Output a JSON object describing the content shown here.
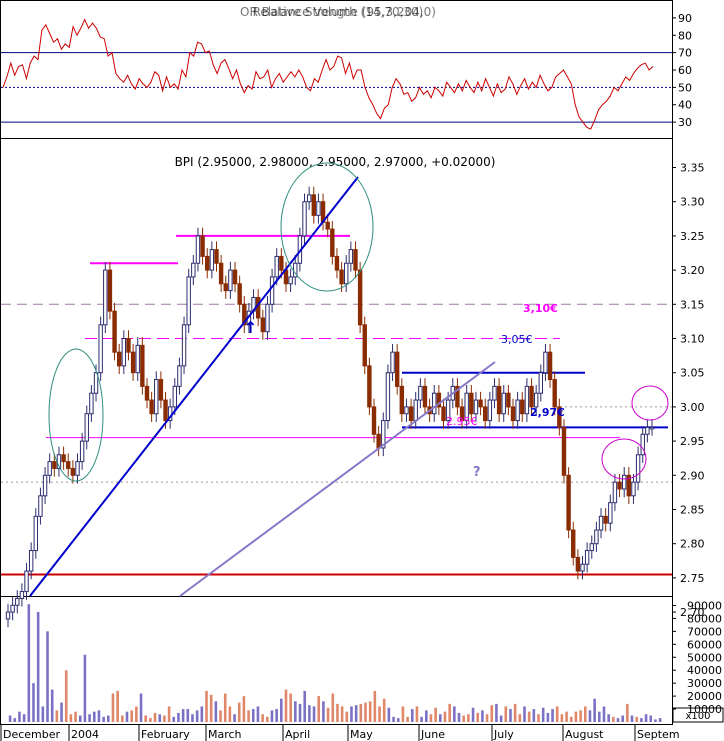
{
  "chart_data": [
    {
      "type": "line",
      "title": "Relative Strength (14,70,30)",
      "overlay_title": "OR Balance Volume (95,3,204,0)",
      "ylim": [
        22,
        98
      ],
      "y_ticks": [
        30,
        40,
        50,
        60,
        70,
        80,
        90
      ],
      "levels": {
        "upper": 70,
        "middle": 50,
        "lower": 30
      },
      "series": [
        {
          "values": [
            50,
            56,
            64,
            57,
            62,
            63,
            55,
            64,
            68,
            66,
            83,
            86,
            81,
            76,
            78,
            72,
            75,
            73,
            85,
            80,
            84,
            89,
            84,
            87,
            84,
            79,
            78,
            68,
            70,
            58,
            55,
            53,
            57,
            52,
            49,
            55,
            52,
            50,
            53,
            59,
            57,
            48,
            56,
            50,
            52,
            49,
            60,
            56,
            70,
            68,
            76,
            75,
            70,
            71,
            63,
            58,
            64,
            66,
            61,
            55,
            60,
            52,
            47,
            51,
            49,
            59,
            55,
            56,
            60,
            50,
            55,
            58,
            53,
            56,
            59,
            56,
            60,
            56,
            50,
            48,
            55,
            53,
            60,
            66,
            60,
            62,
            68,
            67,
            58,
            64,
            55,
            60,
            60,
            50,
            44,
            40,
            35,
            32,
            38,
            40,
            50,
            55,
            52,
            46,
            47,
            42,
            44,
            50,
            46,
            48,
            44,
            50,
            48,
            45,
            53,
            50,
            47,
            52,
            48,
            54,
            50,
            47,
            53,
            48,
            55,
            50,
            45,
            52,
            47,
            49,
            56,
            52,
            46,
            51,
            55,
            49,
            53,
            50,
            57,
            52,
            48,
            50,
            56,
            58,
            60,
            56,
            52,
            40,
            33,
            30,
            27,
            26,
            31,
            37,
            40,
            42,
            45,
            50,
            48,
            52,
            56,
            54,
            58,
            61,
            63,
            64,
            60,
            62
          ]
        }
      ],
      "colors": {
        "line": "#cc0000",
        "levels": "#000080"
      }
    },
    {
      "type": "candlestick",
      "title": "BPI (2.95000, 2.98000, 2.95000, 2.97000, +0.02000)",
      "ylim": [
        2.685,
        3.4
      ],
      "y_ticks": [
        "2.70",
        "2.75",
        "2.80",
        "2.85",
        "2.90",
        "2.95",
        "3.00",
        "3.05",
        "3.10",
        "3.15",
        "3.20",
        "3.25",
        "3.30",
        "3.35"
      ],
      "x_labels": [
        "December",
        "2004",
        "February",
        "March",
        "April",
        "May",
        "June",
        "July",
        "August",
        "Septem"
      ],
      "close": [
        2.7,
        2.71,
        2.72,
        2.73,
        2.76,
        2.79,
        2.84,
        2.87,
        2.9,
        2.92,
        2.91,
        2.93,
        2.92,
        2.91,
        2.9,
        2.92,
        2.95,
        2.99,
        3.02,
        3.05,
        3.12,
        3.2,
        3.14,
        3.08,
        3.06,
        3.1,
        3.08,
        3.05,
        3.09,
        3.03,
        3.01,
        2.99,
        3.04,
        3.01,
        2.98,
        3.0,
        3.03,
        3.06,
        3.12,
        3.19,
        3.21,
        3.25,
        3.22,
        3.2,
        3.23,
        3.21,
        3.18,
        3.17,
        3.2,
        3.18,
        3.15,
        3.12,
        3.14,
        3.16,
        3.13,
        3.11,
        3.15,
        3.19,
        3.22,
        3.2,
        3.18,
        3.19,
        3.21,
        3.25,
        3.3,
        3.31,
        3.28,
        3.3,
        3.27,
        3.26,
        3.22,
        3.2,
        3.18,
        3.21,
        3.23,
        3.2,
        3.12,
        3.06,
        3.0,
        2.96,
        2.94,
        2.98,
        3.05,
        3.08,
        3.03,
        2.99,
        3.0,
        2.98,
        3.01,
        3.03,
        3.0,
        2.99,
        3.02,
        3.0,
        2.98,
        3.01,
        3.03,
        3.0,
        2.98,
        3.02,
        2.99,
        3.01,
        3.0,
        2.98,
        3.01,
        3.03,
        2.99,
        3.02,
        3.0,
        2.98,
        3.01,
        2.99,
        3.03,
        3.0,
        3.02,
        3.05,
        3.08,
        3.04,
        3.0,
        2.97,
        2.9,
        2.82,
        2.78,
        2.76,
        2.77,
        2.79,
        2.8,
        2.82,
        2.84,
        2.83,
        2.86,
        2.89,
        2.88,
        2.9,
        2.87,
        2.89,
        2.93,
        2.96,
        2.97,
        2.97
      ],
      "reference_lines": [
        {
          "value": 3.21,
          "kind": "resistance"
        },
        {
          "value": 3.25,
          "kind": "resistance"
        },
        {
          "value": 3.15,
          "kind": "dashed"
        },
        {
          "value": 3.1,
          "kind": "dashed"
        },
        {
          "value": 3.05,
          "kind": "resistance"
        },
        {
          "value": 2.97,
          "kind": "resistance"
        },
        {
          "value": 2.955,
          "kind": "support"
        },
        {
          "value": 2.89,
          "kind": "dotted"
        },
        {
          "value": 3.0,
          "kind": "dotted"
        },
        {
          "value": 2.755,
          "kind": "support"
        }
      ],
      "annotations": {
        "label_310": "3,10€",
        "label_305": "3,05€",
        "label_297": "2,97€",
        "label_295": "2.95€",
        "question_mark": "?",
        "arrow": "↑"
      },
      "colors": {
        "up": "#2c2c6e",
        "down": "#8b2c00",
        "resistance_pink": "#ff00ff",
        "blue_line": "#0000cc",
        "support_red": "#cc0000",
        "trend_lavender": "#8878c8",
        "ellipse": "#2f8f7f"
      }
    },
    {
      "type": "bar",
      "title": "Volume",
      "ylim": [
        0,
        95000
      ],
      "y_ticks": [
        "10000",
        "20000",
        "30000",
        "40000",
        "50000",
        "60000",
        "70000",
        "80000",
        "90000"
      ],
      "unit_label": "x100",
      "values": [
        5000,
        3000,
        8000,
        6000,
        91000,
        30000,
        85000,
        12000,
        70000,
        25000,
        9000,
        15000,
        40000,
        6000,
        8000,
        5000,
        52000,
        6000,
        8000,
        9000,
        4000,
        5000,
        22000,
        24000,
        5000,
        8000,
        9000,
        12000,
        22000,
        5000,
        3000,
        7000,
        6000,
        5000,
        12000,
        4000,
        7000,
        10000,
        10000,
        6000,
        9000,
        12000,
        24000,
        21000,
        16000,
        9000,
        22000,
        12000,
        6000,
        15000,
        20000,
        9000,
        10000,
        12000,
        6000,
        4000,
        9000,
        10000,
        18000,
        25000,
        22000,
        16000,
        14000,
        24000,
        13000,
        12000,
        20000,
        16000,
        11000,
        22000,
        14000,
        12000,
        8000,
        12000,
        13000,
        14000,
        15000,
        16000,
        24000,
        12000,
        18000,
        11000,
        4000,
        3000,
        12000,
        4000,
        10000,
        12000,
        4000,
        9000,
        6000,
        11000,
        6000,
        8000,
        14000,
        12000,
        7000,
        5000,
        6000,
        11000,
        7000,
        9000,
        6000,
        13000,
        14000,
        5000,
        12000,
        10000,
        14000,
        6000,
        12000,
        8000,
        10000,
        6000,
        11000,
        7000,
        10000,
        12000,
        6000,
        8000,
        4000,
        8000,
        9000,
        12000,
        9000,
        18000,
        8000,
        12000,
        6000,
        4000,
        3000,
        5000,
        14000,
        5000,
        4000,
        3000,
        6000,
        5000,
        2000,
        3000
      ]
    }
  ]
}
